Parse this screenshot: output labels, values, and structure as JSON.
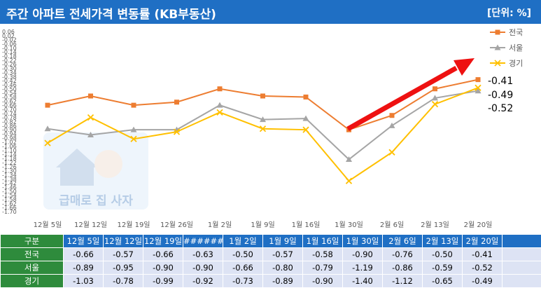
{
  "header": {
    "title": "주간 아파트 전세가격 변동률 (KB부동산)",
    "unit": "[단위: %]"
  },
  "watermark": {
    "text": "급매로 집 사자"
  },
  "table": {
    "corner_label": "구분"
  },
  "chart_data": {
    "type": "line",
    "categories": [
      "12월 5일",
      "12월 12일",
      "12월 19일",
      "12월 26일",
      "1월 2일",
      "1월 9일",
      "1월 16일",
      "1월 30일",
      "2월 6일",
      "2월 13일",
      "2월 20일"
    ],
    "table_categories": [
      "12월 5일",
      "12월 12일",
      "12월 19일",
      "######",
      "1월 2일",
      "1월 9일",
      "1월 16일",
      "1월 30일",
      "2월 6일",
      "2월 13일",
      "2월 20일"
    ],
    "series": [
      {
        "name": "전국",
        "values": [
          -0.66,
          -0.57,
          -0.66,
          -0.63,
          -0.5,
          -0.57,
          -0.58,
          -0.9,
          -0.76,
          -0.5,
          -0.41
        ],
        "color": "#ed7d31",
        "marker": "square"
      },
      {
        "name": "서울",
        "values": [
          -0.89,
          -0.95,
          -0.9,
          -0.9,
          -0.66,
          -0.8,
          -0.79,
          -1.19,
          -0.86,
          -0.59,
          -0.52
        ],
        "color": "#a5a5a5",
        "marker": "triangle"
      },
      {
        "name": "경기",
        "values": [
          -1.03,
          -0.78,
          -0.99,
          -0.92,
          -0.73,
          -0.89,
          -0.9,
          -1.4,
          -1.12,
          -0.65,
          -0.49
        ],
        "color": "#ffc000",
        "marker": "x"
      }
    ],
    "end_labels": [
      "-0.41",
      "-0.49",
      "-0.52"
    ],
    "ylim": [
      -1.7,
      0.06
    ],
    "legend": "top-right",
    "annotation": "red upward trend arrow"
  }
}
